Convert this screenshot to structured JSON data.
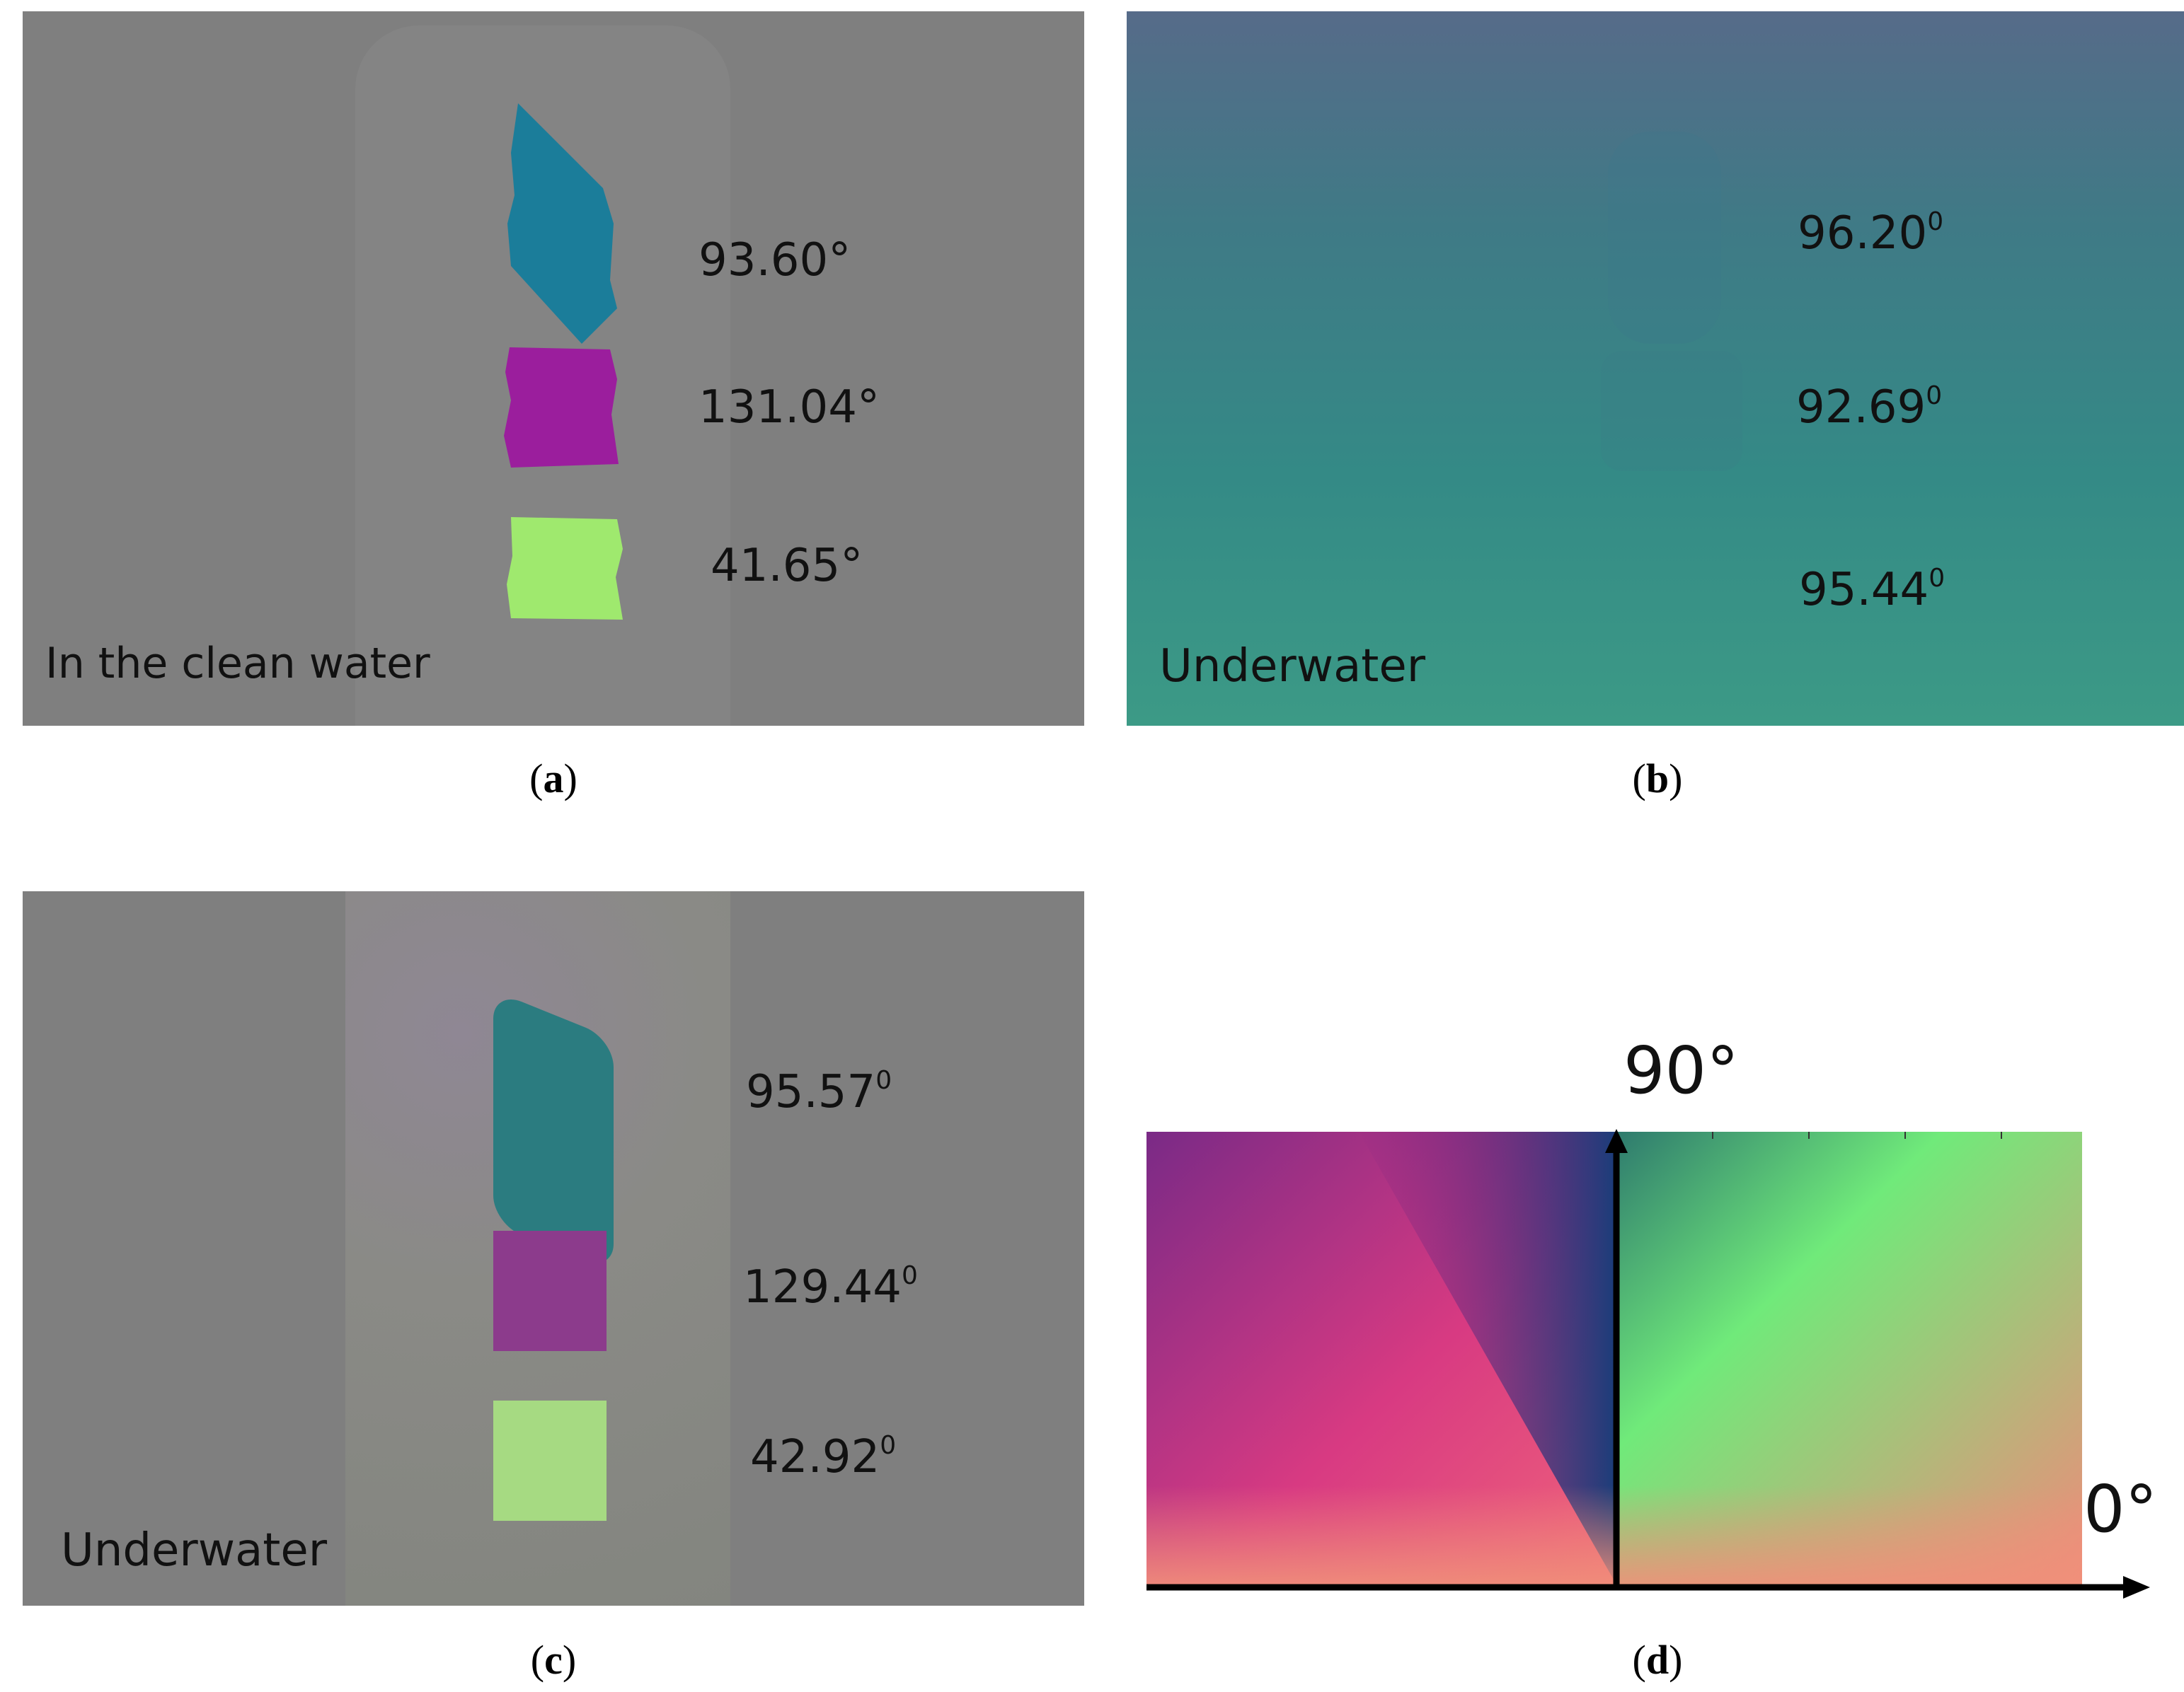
{
  "panels": {
    "a": {
      "caption_open": "(",
      "caption_letter": "a",
      "caption_close": ")",
      "corner_label": "In the clean water",
      "values": [
        "93.60°",
        "131.04°",
        "41.65°"
      ],
      "patch_colors": [
        "#1a7a96",
        "#9a1f9a",
        "#9ee86a"
      ],
      "background_color": "#7f7f7f"
    },
    "b": {
      "caption_open": "(",
      "caption_letter": "b",
      "caption_close": ")",
      "corner_label": "Underwater",
      "values": [
        "96.20",
        "92.69",
        "95.44"
      ],
      "value_sup": "0",
      "gradient_top": "#556a88",
      "gradient_bottom": "#3a9a86"
    },
    "c": {
      "caption_open": "(",
      "caption_letter": "c",
      "caption_close": ")",
      "corner_label": "Underwater",
      "values": [
        "95.57",
        "129.44",
        "42.92"
      ],
      "value_sup": "0",
      "patch_colors": [
        "#2a7a7e",
        "#8a3a8a",
        "#a4d880"
      ]
    },
    "d": {
      "caption_open": "(",
      "caption_letter": "d",
      "caption_close": ")",
      "label_90": "90°",
      "label_0": "0°"
    }
  }
}
